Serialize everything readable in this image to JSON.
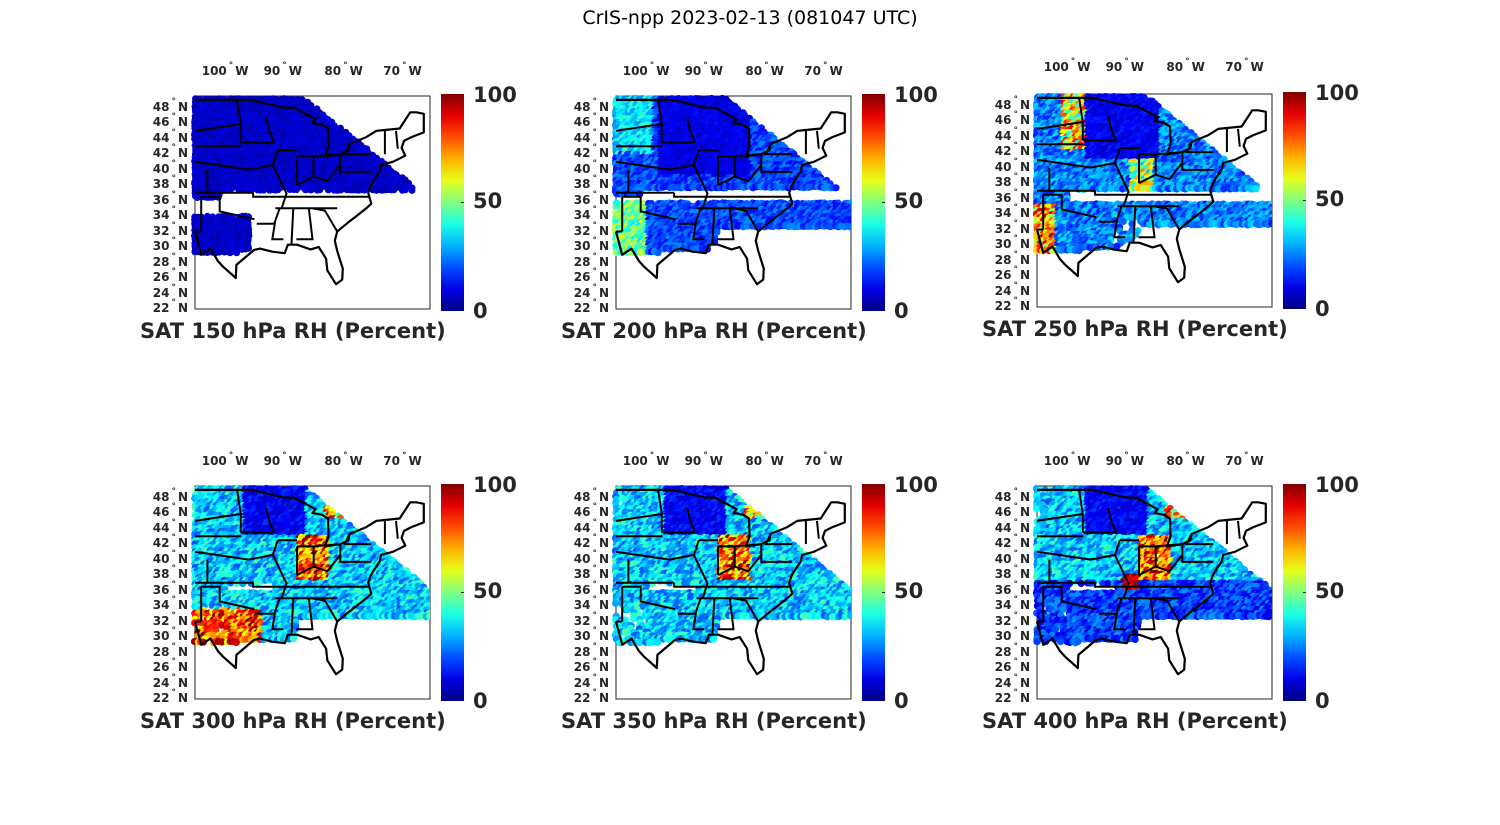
{
  "figure_title": "CrIS-npp 2023-02-13 (081047 UTC)",
  "chart_data": [
    {
      "type": "scatter",
      "title": "SAT 150 hPa RH (Percent)",
      "level_hPa": 150,
      "pattern": "dry",
      "colorbar": {
        "min": 0,
        "max": 100,
        "ticks": [
          "0",
          "50",
          "100"
        ]
      }
    },
    {
      "type": "scatter",
      "title": "SAT 200 hPa RH (Percent)",
      "level_hPa": 200,
      "pattern": "mostly-dry",
      "colorbar": {
        "min": 0,
        "max": 100,
        "ticks": [
          "0",
          "50",
          "100"
        ]
      }
    },
    {
      "type": "scatter",
      "title": "SAT 250 hPa RH (Percent)",
      "level_hPa": 250,
      "pattern": "mixed",
      "colorbar": {
        "min": 0,
        "max": 100,
        "ticks": [
          "0",
          "50",
          "100"
        ]
      }
    },
    {
      "type": "scatter",
      "title": "SAT 300 hPa RH (Percent)",
      "level_hPa": 300,
      "pattern": "moist-ohio",
      "colorbar": {
        "min": 0,
        "max": 100,
        "ticks": [
          "0",
          "50",
          "100"
        ]
      }
    },
    {
      "type": "scatter",
      "title": "SAT 350 hPa RH (Percent)",
      "level_hPa": 350,
      "pattern": "moist-ohio",
      "colorbar": {
        "min": 0,
        "max": 100,
        "ticks": [
          "0",
          "50",
          "100"
        ]
      }
    },
    {
      "type": "scatter",
      "title": "SAT 400 hPa RH (Percent)",
      "level_hPa": 400,
      "pattern": "moist-ohio",
      "colorbar": {
        "min": 0,
        "max": 100,
        "ticks": [
          "0",
          "50",
          "100"
        ]
      }
    }
  ],
  "axes": {
    "lon_ticks": [
      {
        "num": "100",
        "dir": "W"
      },
      {
        "num": "90",
        "dir": "W"
      },
      {
        "num": "80",
        "dir": "W"
      },
      {
        "num": "70",
        "dir": "W"
      }
    ],
    "lat_ticks": [
      {
        "num": "48",
        "dir": "N"
      },
      {
        "num": "46",
        "dir": "N"
      },
      {
        "num": "44",
        "dir": "N"
      },
      {
        "num": "42",
        "dir": "N"
      },
      {
        "num": "40",
        "dir": "N"
      },
      {
        "num": "38",
        "dir": "N"
      },
      {
        "num": "36",
        "dir": "N"
      },
      {
        "num": "34",
        "dir": "N"
      },
      {
        "num": "32",
        "dir": "N"
      },
      {
        "num": "30",
        "dir": "N"
      },
      {
        "num": "28",
        "dir": "N"
      },
      {
        "num": "26",
        "dir": "N"
      },
      {
        "num": "24",
        "dir": "N"
      },
      {
        "num": "22",
        "dir": "N"
      }
    ],
    "lon_range": [
      -104,
      -66
    ],
    "lat_range": [
      22,
      49.5
    ],
    "degree_symbol": "°"
  }
}
